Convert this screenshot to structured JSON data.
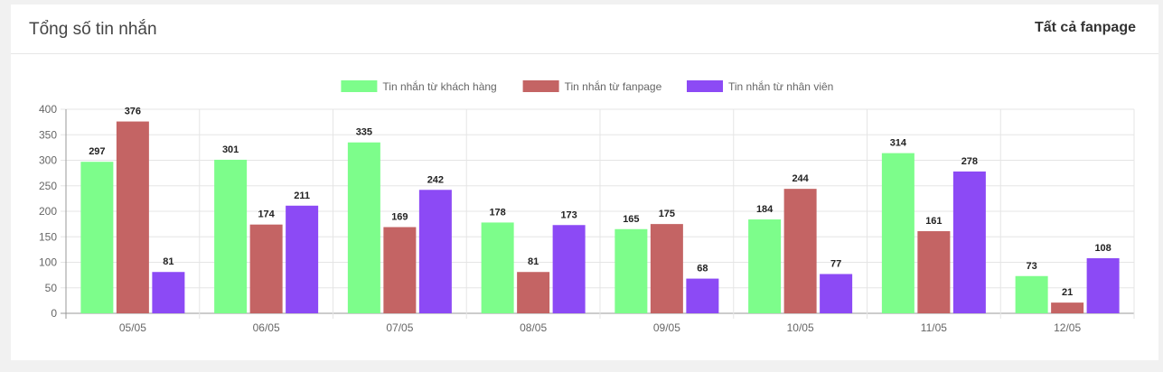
{
  "header": {
    "title": "Tổng số tin nhắn",
    "filter_label": "Tất cả fanpage"
  },
  "chart_data": {
    "type": "bar",
    "categories": [
      "05/05",
      "06/05",
      "07/05",
      "08/05",
      "09/05",
      "10/05",
      "11/05",
      "12/05"
    ],
    "series": [
      {
        "name": "Tin nhắn từ khách hàng",
        "color": "#7dfd8b",
        "values": [
          297,
          301,
          335,
          178,
          165,
          184,
          314,
          73
        ]
      },
      {
        "name": "Tin nhắn từ fanpage",
        "color": "#c46464",
        "values": [
          376,
          174,
          169,
          81,
          175,
          244,
          161,
          21
        ]
      },
      {
        "name": "Tin nhắn từ nhân viên",
        "color": "#8c4af5",
        "values": [
          81,
          211,
          242,
          173,
          68,
          77,
          278,
          108
        ]
      }
    ],
    "ylim": [
      0,
      400
    ],
    "yticks": [
      0,
      50,
      100,
      150,
      200,
      250,
      300,
      350,
      400
    ],
    "grid": true,
    "legend": "top",
    "data_labels": true
  }
}
